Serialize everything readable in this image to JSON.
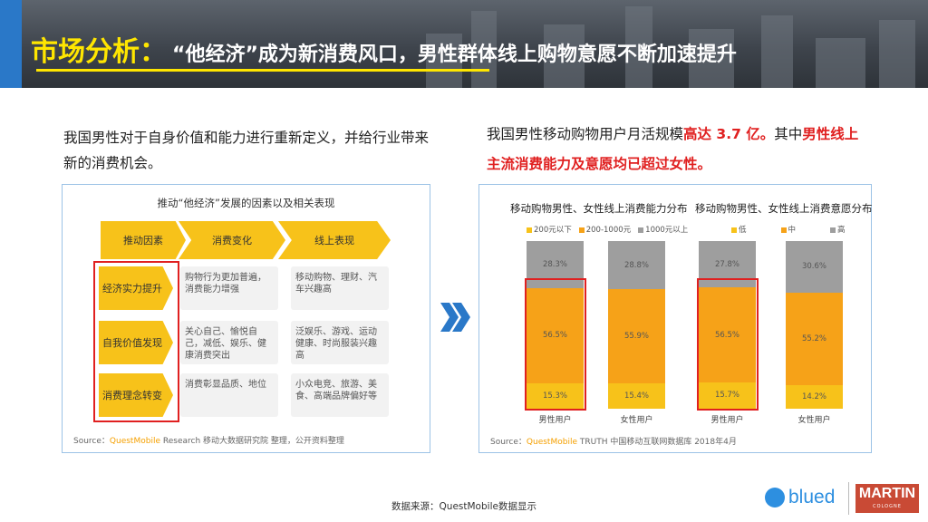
{
  "header": {
    "title_main": "市场分析：",
    "title_sub": "“他经济”成为新消费风口，男性群体线上购物意愿不断加速提升"
  },
  "left_text": "我国男性对于自身价值和能力进行重新定义，并给行业带来新的消费机会。",
  "right_text": {
    "part1": "我国男性移动购物用户月活规模",
    "highlight1": "高达 3.7 亿。",
    "part2": "其中",
    "highlight2": "男性线上主流消费能力及意愿均已超过女性。"
  },
  "diagram": {
    "title": "推动“他经济”发展的因素以及相关表现",
    "headers": [
      "推动因素",
      "消费变化",
      "线上表现"
    ],
    "rows": [
      {
        "factor": "经济实力提升",
        "change": "购物行为更加普遍，消费能力增强",
        "online": "移动购物、理财、汽车兴趣高"
      },
      {
        "factor": "自我价值发现",
        "change": "关心自己、愉悦自己，减低、娱乐、健康消费突出",
        "online": "泛娱乐、游戏、运动健康、时尚服装兴趣高"
      },
      {
        "factor": "消费理念转变",
        "change": "消费彰显品质、地位",
        "online": "小众电竞、旅游、美食、高端品牌偏好等"
      }
    ],
    "source_label": "Source：",
    "source_brand": "QuestMobile",
    "source_text": "Research 移动大数据研究院 整理，公开资料整理"
  },
  "chart_source": {
    "label": "Source：",
    "brand": "QuestMobile",
    "text": "TRUTH 中国移动互联网数据库 2018年4月"
  },
  "colors": {
    "orange": "#f6a218",
    "yellow": "#f7c21a",
    "gray": "#9e9e9e",
    "red": "#e02020",
    "blue": "#2a78c8"
  },
  "chart_data": [
    {
      "type": "bar",
      "stacked": true,
      "title": "移动购物男性、女性线上消费能力分布",
      "categories": [
        "男性用户",
        "女性用户"
      ],
      "series": [
        {
          "name": "200元以下",
          "color": "#f7c21a",
          "values": [
            15.3,
            15.4
          ]
        },
        {
          "name": "200-1000元",
          "color": "#f6a218",
          "values": [
            56.5,
            55.9
          ]
        },
        {
          "name": "1000元以上",
          "color": "#9e9e9e",
          "values": [
            28.3,
            28.8
          ]
        }
      ],
      "labels": [
        [
          "15.3%",
          "56.5%",
          "28.3%"
        ],
        [
          "15.4%",
          "55.9%",
          "28.8%"
        ]
      ],
      "ylim": [
        0,
        100
      ]
    },
    {
      "type": "bar",
      "stacked": true,
      "title": "移动购物男性、女性线上消费意愿分布",
      "categories": [
        "男性用户",
        "女性用户"
      ],
      "series": [
        {
          "name": "低",
          "color": "#f7c21a",
          "values": [
            15.7,
            14.2
          ]
        },
        {
          "name": "中",
          "color": "#f6a218",
          "values": [
            56.5,
            55.2
          ]
        },
        {
          "name": "高",
          "color": "#9e9e9e",
          "values": [
            27.8,
            30.6
          ]
        }
      ],
      "labels": [
        [
          "15.7%",
          "56.5%",
          "27.8%"
        ],
        [
          "14.2%",
          "55.2%",
          "30.6%"
        ]
      ],
      "ylim": [
        0,
        100
      ]
    }
  ],
  "footer": {
    "source": "数据来源：QuestMobile数据显示",
    "logo1": "blued",
    "logo2": "MARTIN",
    "logo2_sub": "COLOGNE"
  }
}
